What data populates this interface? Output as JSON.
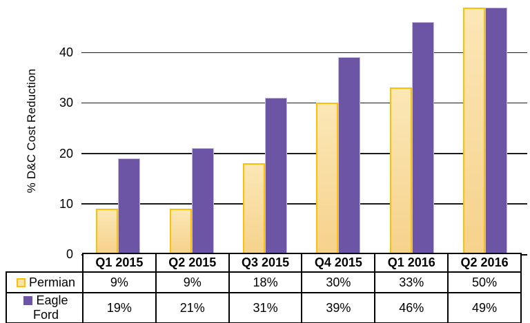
{
  "chart_data": {
    "type": "bar",
    "title": "",
    "xlabel": "",
    "ylabel": "% D&C Cost Reduction",
    "categories": [
      "Q1 2015",
      "Q2 2015",
      "Q3 2015",
      "Q4 2015",
      "Q1 2016",
      "Q2 2016"
    ],
    "series": [
      {
        "name": "Permian",
        "values": [
          9,
          9,
          18,
          30,
          33,
          50
        ],
        "color_fill_top": "#FBE7B6",
        "color_fill_bottom": "#F6D28C",
        "color_border": "#FFC000",
        "border_px": 2,
        "marker_fill": "#FAE3AC",
        "marker_border": "#FFC000"
      },
      {
        "name": "Eagle Ford",
        "values": [
          19,
          21,
          31,
          39,
          46,
          49
        ],
        "color_fill_top": "#6C55A4",
        "color_fill_bottom": "#6C55A4",
        "color_border": "#C7BADF",
        "border_px": 1.5,
        "marker_fill": "#6C55A4",
        "marker_border": "#6C55A4"
      }
    ],
    "ylim": [
      0,
      48.9
    ],
    "yticks": [
      0,
      10,
      20,
      30,
      40
    ],
    "grid": true,
    "legend_position": "left column of attached data table"
  },
  "data_table": {
    "column_headers": [
      "Q1 2015",
      "Q2 2015",
      "Q3 2015",
      "Q4 2015",
      "Q1 2016",
      "Q2 2016"
    ],
    "rows": [
      {
        "label": "Permian",
        "values": [
          "9%",
          "9%",
          "18%",
          "30%",
          "33%",
          "50%"
        ]
      },
      {
        "label": "Eagle Ford",
        "values": [
          "19%",
          "21%",
          "31%",
          "39%",
          "46%",
          "49%"
        ]
      }
    ]
  }
}
